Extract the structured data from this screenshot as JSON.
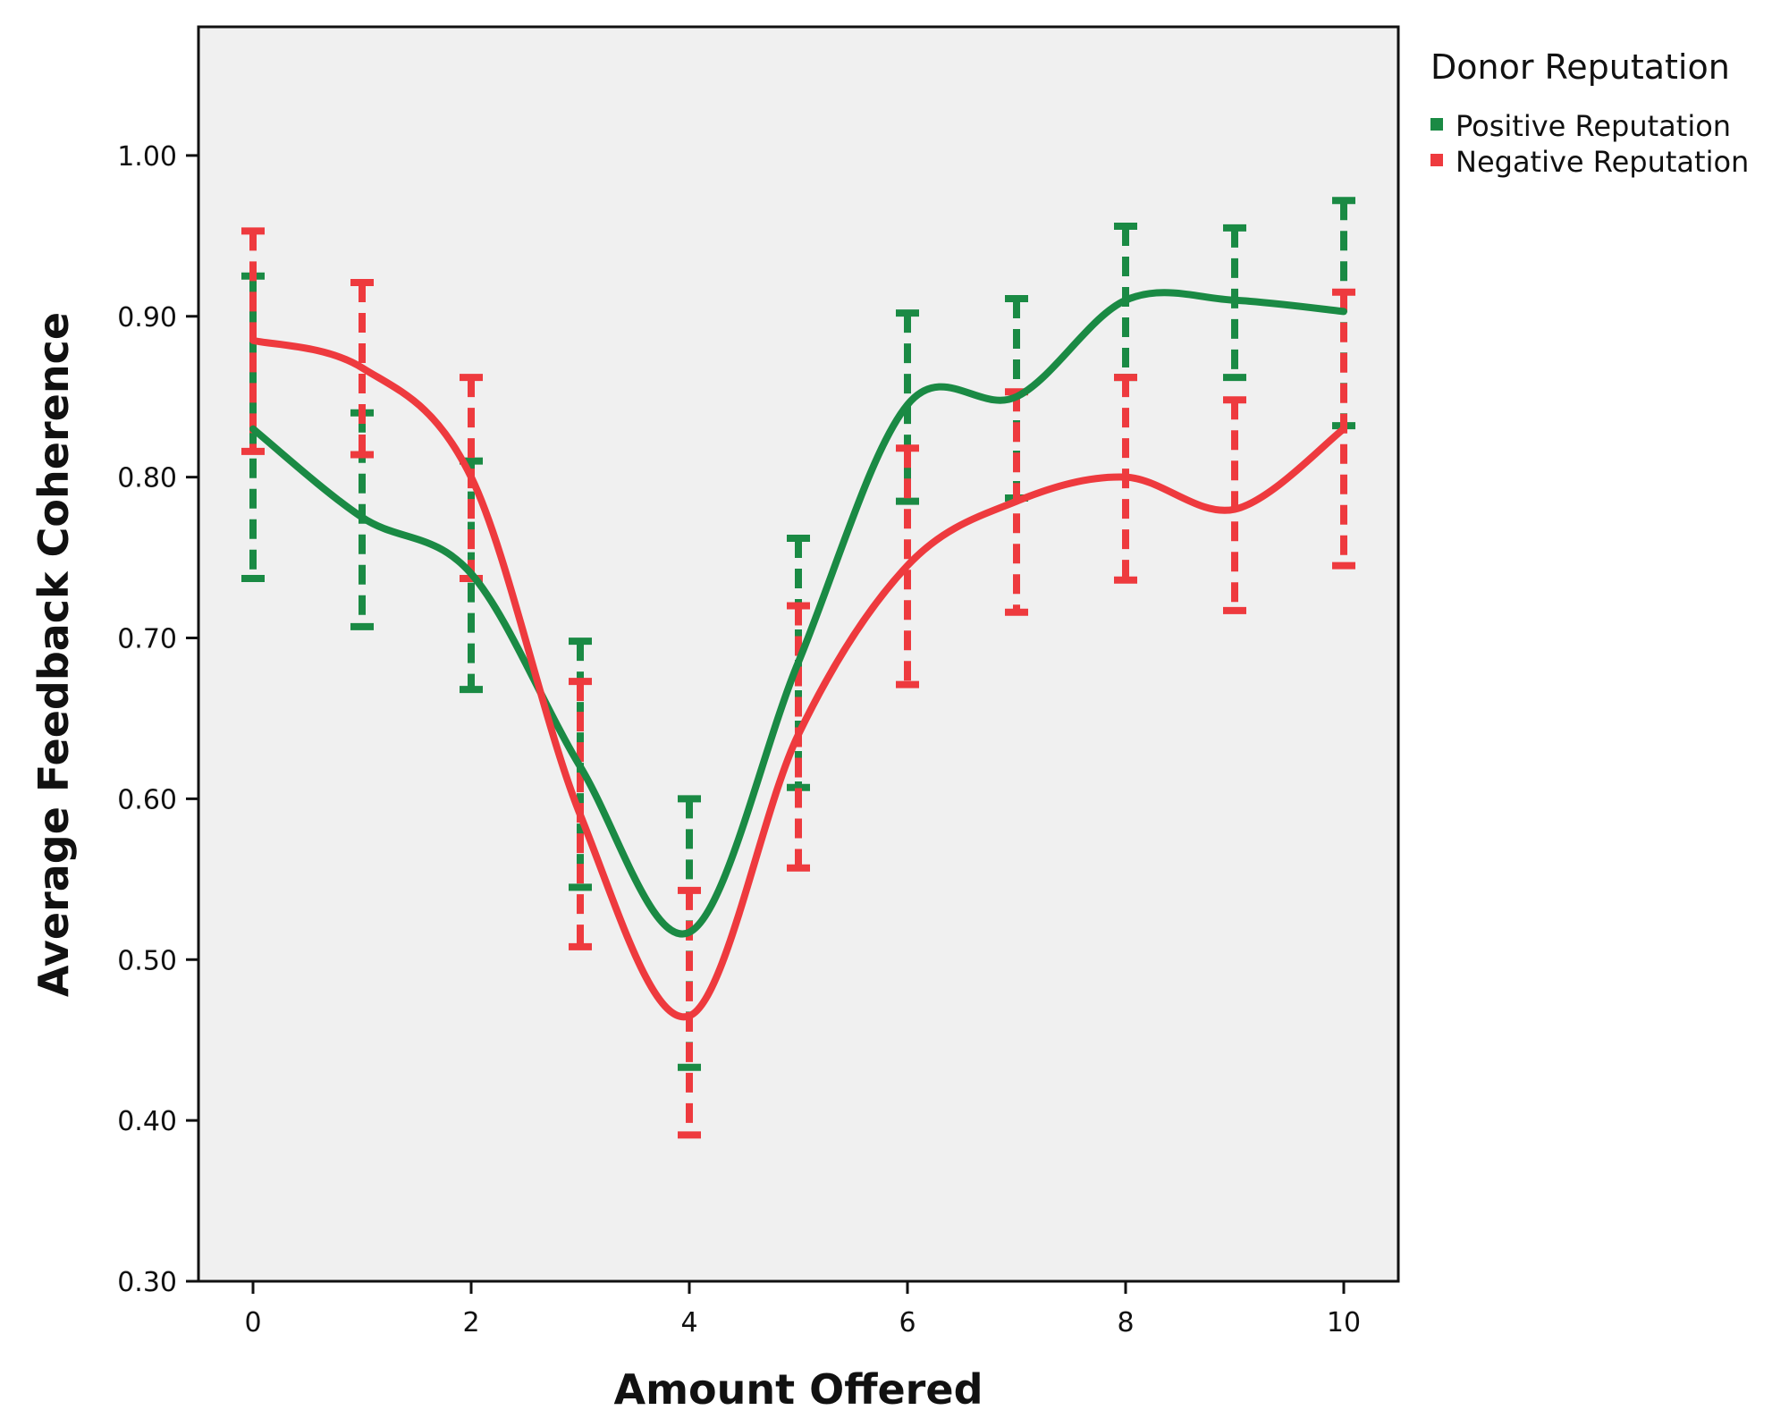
{
  "chart_data": {
    "type": "line",
    "title": "",
    "xlabel": "Amount Offered",
    "ylabel": "Average Feedback Coherence",
    "xlim": [
      -0.5,
      10.5
    ],
    "ylim": [
      0.3,
      1.08
    ],
    "x_ticks": [
      0,
      2,
      4,
      6,
      8,
      10
    ],
    "x_tick_labels": [
      "0",
      "2",
      "4",
      "6",
      "8",
      "10"
    ],
    "y_ticks": [
      0.3,
      0.4,
      0.5,
      0.6,
      0.7,
      0.8,
      0.9,
      1.0
    ],
    "y_tick_labels": [
      "0.30",
      "0.40",
      "0.50",
      "0.60",
      "0.70",
      "0.80",
      "0.90",
      "1.00"
    ],
    "grid": false,
    "legend": {
      "title": "Donor Reputation",
      "placement": "outside-top-right"
    },
    "x": [
      0,
      1,
      2,
      3,
      4,
      5,
      6,
      7,
      8,
      9,
      10
    ],
    "series": [
      {
        "name": "Positive Reputation",
        "color": "#1a8a44",
        "values": [
          0.83,
          0.775,
          0.74,
          0.62,
          0.517,
          0.685,
          0.845,
          0.85,
          0.91,
          0.91,
          0.903
        ],
        "error_low": [
          0.737,
          0.707,
          0.668,
          0.545,
          0.433,
          0.607,
          0.785,
          0.787,
          0.862,
          0.862,
          0.832
        ],
        "error_high": [
          0.925,
          0.84,
          0.81,
          0.698,
          0.6,
          0.762,
          0.902,
          0.911,
          0.956,
          0.955,
          0.972
        ]
      },
      {
        "name": "Negative Reputation",
        "color": "#ee3a3e",
        "values": [
          0.885,
          0.868,
          0.8,
          0.59,
          0.465,
          0.64,
          0.745,
          0.785,
          0.8,
          0.78,
          0.83
        ],
        "error_low": [
          0.816,
          0.814,
          0.737,
          0.508,
          0.391,
          0.557,
          0.671,
          0.716,
          0.736,
          0.717,
          0.745
        ],
        "error_high": [
          0.953,
          0.921,
          0.862,
          0.673,
          0.543,
          0.72,
          0.818,
          0.853,
          0.862,
          0.848,
          0.915
        ]
      }
    ]
  }
}
